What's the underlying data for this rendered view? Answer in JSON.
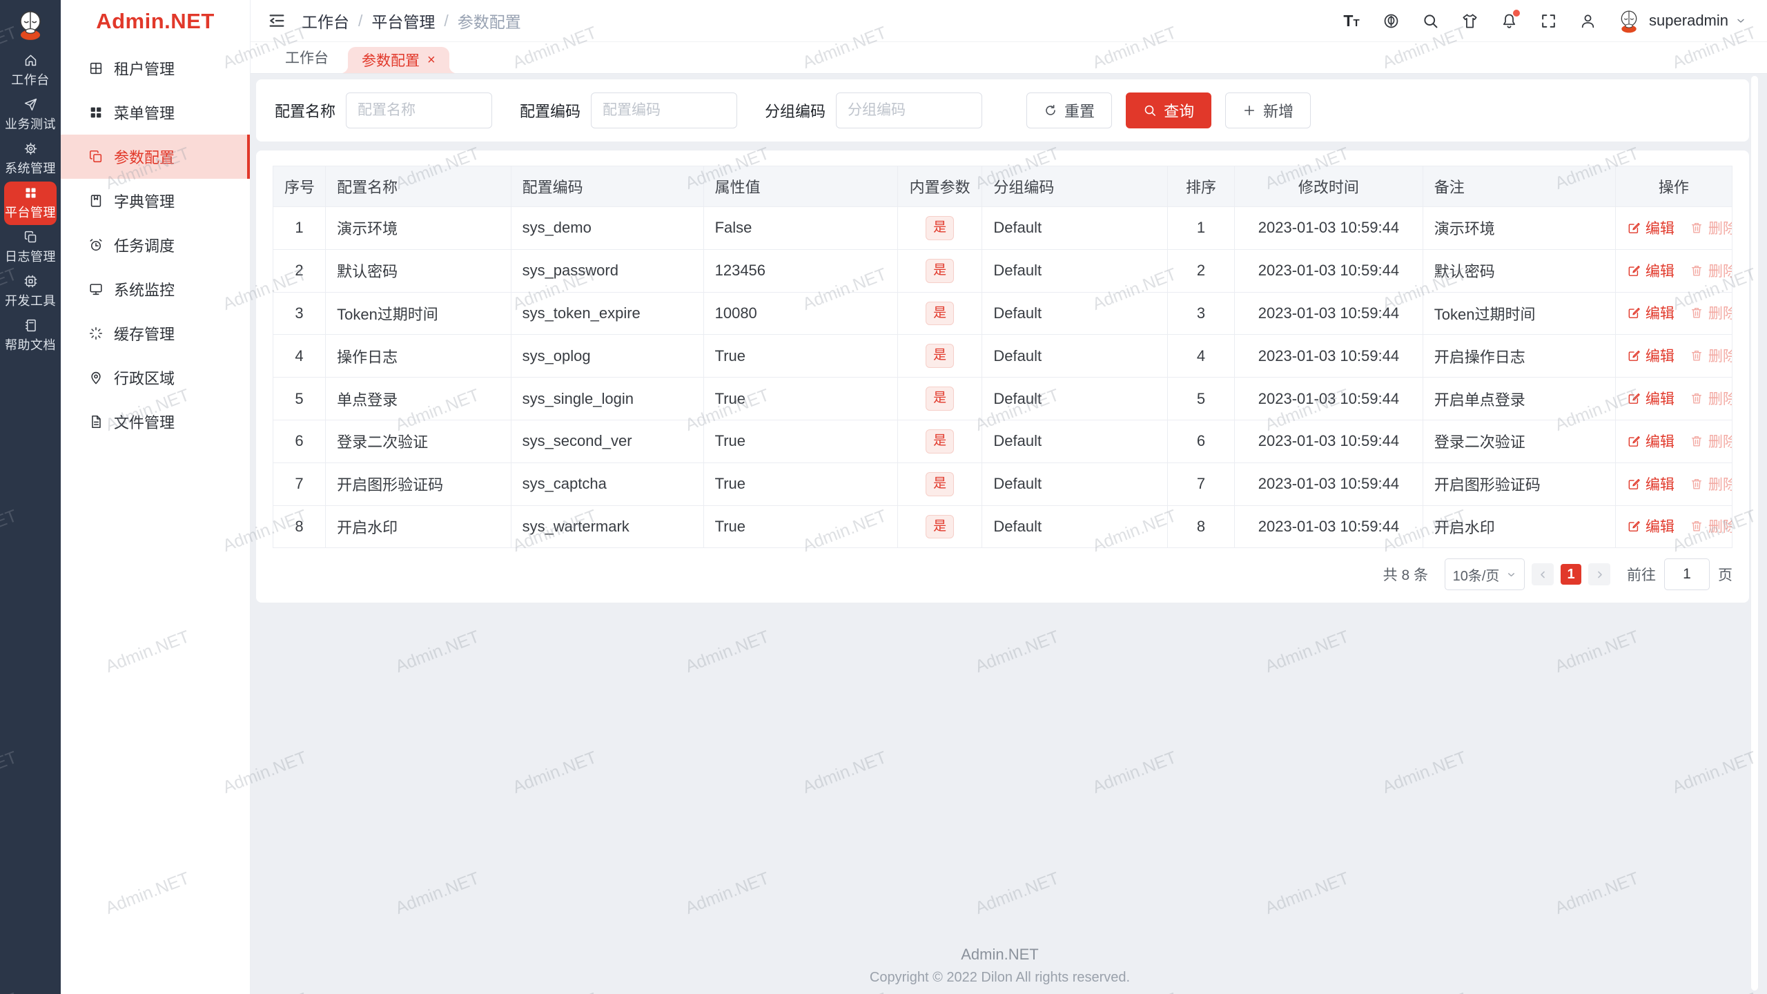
{
  "app": {
    "name": "Admin.NET"
  },
  "colors": {
    "accent": "#e1382a",
    "rail_bg": "#2b3648",
    "tab_pink": "#fbe0de",
    "menu_pink": "#fadbd7"
  },
  "rail": {
    "items": [
      {
        "label": "工作台",
        "icon": "home-icon",
        "active": false
      },
      {
        "label": "业务测试",
        "icon": "send-icon",
        "active": false
      },
      {
        "label": "系统管理",
        "icon": "gear-icon",
        "active": false
      },
      {
        "label": "平台管理",
        "icon": "grid-icon",
        "active": true
      },
      {
        "label": "日志管理",
        "icon": "copy-icon",
        "active": false
      },
      {
        "label": "开发工具",
        "icon": "cpu-icon",
        "active": false
      },
      {
        "label": "帮助文档",
        "icon": "notebook-icon",
        "active": false
      }
    ]
  },
  "sidebar": {
    "items": [
      {
        "label": "租户管理",
        "icon": "tenant-icon",
        "active": false
      },
      {
        "label": "菜单管理",
        "icon": "menu-grid-icon",
        "active": false
      },
      {
        "label": "参数配置",
        "icon": "copy-icon",
        "active": true
      },
      {
        "label": "字典管理",
        "icon": "book-icon",
        "active": false
      },
      {
        "label": "任务调度",
        "icon": "alarm-icon",
        "active": false
      },
      {
        "label": "系统监控",
        "icon": "monitor-icon",
        "active": false
      },
      {
        "label": "缓存管理",
        "icon": "spinner-icon",
        "active": false
      },
      {
        "label": "行政区域",
        "icon": "pin-icon",
        "active": false
      },
      {
        "label": "文件管理",
        "icon": "file-icon",
        "active": false
      }
    ]
  },
  "header": {
    "breadcrumb": [
      "工作台",
      "平台管理",
      "参数配置"
    ],
    "icons": [
      {
        "name": "font-size-icon"
      },
      {
        "name": "language-icon"
      },
      {
        "name": "search-icon"
      },
      {
        "name": "theme-icon"
      },
      {
        "name": "bell-icon",
        "badge": true
      },
      {
        "name": "fullscreen-icon"
      },
      {
        "name": "user-icon"
      }
    ],
    "user": "superadmin"
  },
  "tabs": [
    {
      "label": "工作台",
      "active": false,
      "closable": false
    },
    {
      "label": "参数配置",
      "active": true,
      "closable": true
    }
  ],
  "filters": {
    "fields": [
      {
        "label": "配置名称",
        "placeholder": "配置名称"
      },
      {
        "label": "配置编码",
        "placeholder": "配置编码"
      },
      {
        "label": "分组编码",
        "placeholder": "分组编码"
      }
    ],
    "reset": "重置",
    "search": "查询",
    "add": "新增"
  },
  "table": {
    "columns": [
      "序号",
      "配置名称",
      "配置编码",
      "属性值",
      "内置参数",
      "分组编码",
      "排序",
      "修改时间",
      "备注",
      "操作"
    ],
    "badge_yes": "是",
    "actions": {
      "edit": "编辑",
      "delete": "删除"
    },
    "rows": [
      [
        "1",
        "演示环境",
        "sys_demo",
        "False",
        "是",
        "Default",
        "1",
        "2023-01-03 10:59:44",
        "演示环境"
      ],
      [
        "2",
        "默认密码",
        "sys_password",
        "123456",
        "是",
        "Default",
        "2",
        "2023-01-03 10:59:44",
        "默认密码"
      ],
      [
        "3",
        "Token过期时间",
        "sys_token_expire",
        "10080",
        "是",
        "Default",
        "3",
        "2023-01-03 10:59:44",
        "Token过期时间"
      ],
      [
        "4",
        "操作日志",
        "sys_oplog",
        "True",
        "是",
        "Default",
        "4",
        "2023-01-03 10:59:44",
        "开启操作日志"
      ],
      [
        "5",
        "单点登录",
        "sys_single_login",
        "True",
        "是",
        "Default",
        "5",
        "2023-01-03 10:59:44",
        "开启单点登录"
      ],
      [
        "6",
        "登录二次验证",
        "sys_second_ver",
        "True",
        "是",
        "Default",
        "6",
        "2023-01-03 10:59:44",
        "登录二次验证"
      ],
      [
        "7",
        "开启图形验证码",
        "sys_captcha",
        "True",
        "是",
        "Default",
        "7",
        "2023-01-03 10:59:44",
        "开启图形验证码"
      ],
      [
        "8",
        "开启水印",
        "sys_wartermark",
        "True",
        "是",
        "Default",
        "8",
        "2023-01-03 10:59:44",
        "开启水印"
      ]
    ]
  },
  "pagination": {
    "total": "共 8 条",
    "page_size": "10条/页",
    "current": "1",
    "goto_label": "前往",
    "goto_value": "1",
    "page_suffix": "页"
  },
  "footer": {
    "line1": "Admin.NET",
    "line2": "Copyright © 2022 Dilon All rights reserved."
  },
  "watermark": {
    "text": "Admin.NET"
  }
}
